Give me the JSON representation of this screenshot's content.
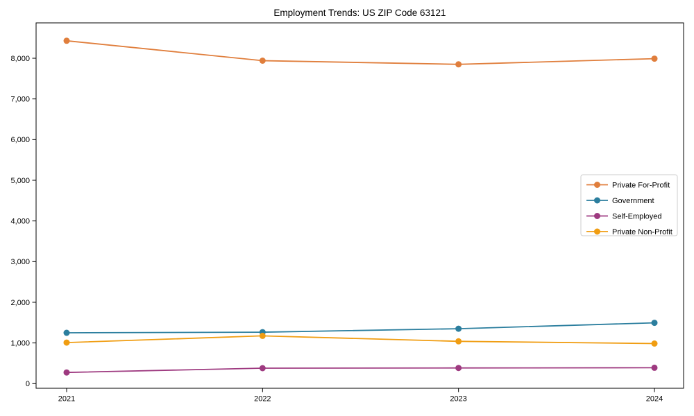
{
  "title": "Employment Trends: US ZIP Code 63121",
  "chart_data": {
    "type": "line",
    "title": "Employment Trends: US ZIP Code 63121",
    "xlabel": "",
    "ylabel": "",
    "categories": [
      "2021",
      "2022",
      "2023",
      "2024"
    ],
    "x": [
      2021,
      2022,
      2023,
      2024
    ],
    "series": [
      {
        "name": "Private For-Profit",
        "color": "#E07E3C",
        "values": [
          8430,
          7940,
          7850,
          7990
        ]
      },
      {
        "name": "Government",
        "color": "#2B7E9E",
        "values": [
          1250,
          1265,
          1350,
          1495
        ]
      },
      {
        "name": "Self-Employed",
        "color": "#9E3A80",
        "values": [
          275,
          380,
          385,
          390
        ]
      },
      {
        "name": "Private Non-Profit",
        "color": "#F09D12",
        "values": [
          1010,
          1175,
          1040,
          985
        ]
      }
    ],
    "yticks": [
      0,
      1000,
      2000,
      3000,
      4000,
      5000,
      6000,
      7000,
      8000
    ],
    "ytick_labels": [
      "0",
      "1,000",
      "2,000",
      "3,000",
      "4,000",
      "5,000",
      "6,000",
      "7,000",
      "8,000"
    ],
    "ylim": [
      -135,
      8870
    ],
    "grid": false,
    "marker": "circle",
    "legend_position": "center right",
    "legend_border_color": "#cccccc",
    "axis_color": "#000000"
  }
}
